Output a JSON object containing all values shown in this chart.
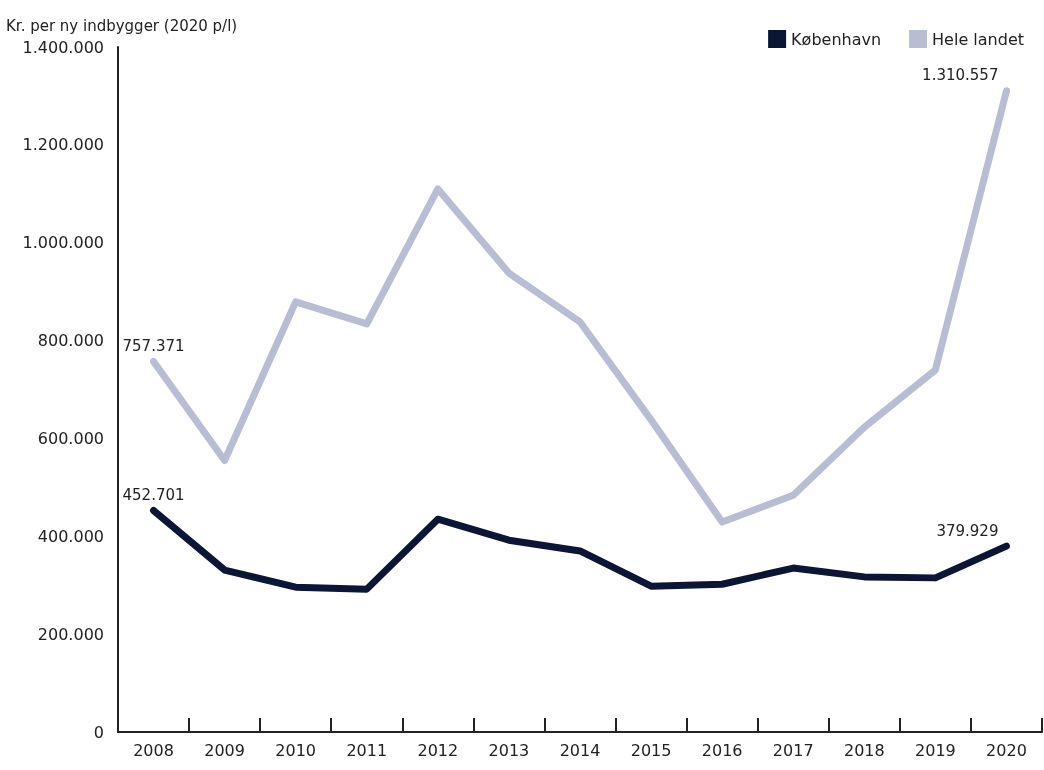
{
  "chart_data": {
    "type": "line",
    "ylabel": "Kr. per ny indbygger (2020 p/l)",
    "categories": [
      "2008",
      "2009",
      "2010",
      "2011",
      "2012",
      "2013",
      "2014",
      "2015",
      "2016",
      "2017",
      "2018",
      "2019",
      "2020"
    ],
    "series": [
      {
        "name": "København",
        "color": "#0b1536",
        "values": [
          452701,
          331000,
          296000,
          292000,
          435000,
          392000,
          370000,
          298000,
          302000,
          335000,
          317000,
          315000,
          379929
        ],
        "value_labels": [
          "452.701",
          null,
          null,
          null,
          null,
          null,
          null,
          null,
          null,
          null,
          null,
          null,
          "379.929"
        ]
      },
      {
        "name": "Hele landet",
        "color": "#b9bdd3",
        "values": [
          757371,
          555000,
          879000,
          834000,
          1110000,
          938000,
          838000,
          638000,
          429000,
          484000,
          623000,
          740000,
          1310557
        ],
        "value_labels": [
          "757.371",
          null,
          null,
          null,
          null,
          null,
          null,
          null,
          null,
          null,
          null,
          null,
          "1.310.557"
        ]
      }
    ],
    "ylim": [
      0,
      1400000
    ],
    "yticks": [
      0,
      {
        "value": 200000,
        "label": "200.000"
      },
      {
        "value": 400000,
        "label": "400.000"
      },
      {
        "value": 600000,
        "label": "600.000"
      },
      {
        "value": 800000,
        "label": "800.000"
      },
      {
        "value": 1000000,
        "label": "1.000.000"
      },
      {
        "value": 1200000,
        "label": "1.200.000"
      },
      {
        "value": 1400000,
        "label": "1.400.000"
      }
    ],
    "grid": false,
    "legend": "top right",
    "marker": "none",
    "line_style": "solid"
  }
}
